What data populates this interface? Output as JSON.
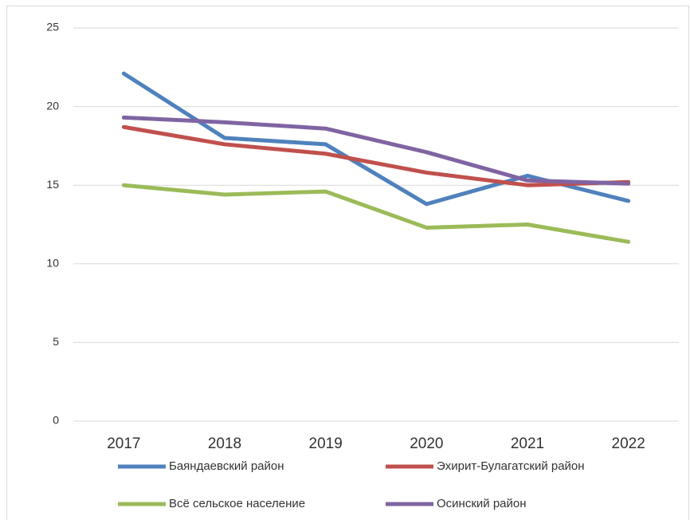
{
  "chart_data": {
    "type": "line",
    "categories": [
      "2017",
      "2018",
      "2019",
      "2020",
      "2021",
      "2022"
    ],
    "series": [
      {
        "name": "Баяндаевский район",
        "color": "#4f81bd",
        "values": [
          22.1,
          18.0,
          17.6,
          13.8,
          15.6,
          14.0
        ]
      },
      {
        "name": "Эхирит-Булагатский район",
        "color": "#c0504d",
        "values": [
          18.7,
          17.6,
          17.0,
          15.8,
          15.0,
          15.2
        ]
      },
      {
        "name": "Всё сельское население",
        "color": "#9bbb59",
        "values": [
          15.0,
          14.4,
          14.6,
          12.3,
          12.5,
          11.4
        ]
      },
      {
        "name": "Осинский район",
        "color": "#8064a2",
        "values": [
          19.3,
          19.0,
          18.6,
          17.1,
          15.3,
          15.1
        ]
      }
    ],
    "ylim": [
      0,
      25
    ],
    "yticks": [
      0,
      5,
      10,
      15,
      20,
      25
    ],
    "grid": true
  }
}
